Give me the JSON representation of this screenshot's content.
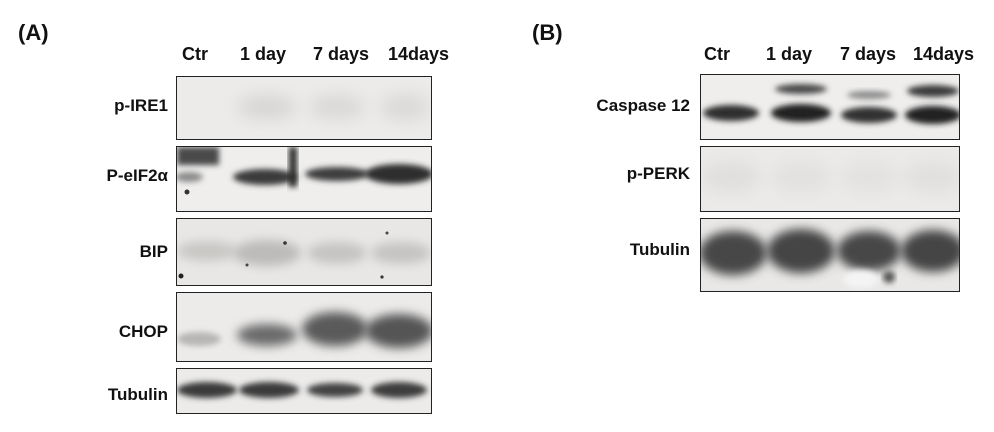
{
  "panelA": {
    "letter": "(A)",
    "lanes": [
      "Ctr",
      "1 day",
      "7 days",
      "14days"
    ],
    "rows": [
      {
        "label": "p-IRE1"
      },
      {
        "label": "P-eIF2α"
      },
      {
        "label": "BIP"
      },
      {
        "label": "CHOP"
      },
      {
        "label": "Tubulin"
      }
    ]
  },
  "panelB": {
    "letter": "(B)",
    "lanes": [
      "Ctr",
      "1 day",
      "7 days",
      "14days"
    ],
    "rows": [
      {
        "label": "Caspase 12"
      },
      {
        "label": "p-PERK"
      },
      {
        "label": "Tubulin"
      }
    ]
  }
}
